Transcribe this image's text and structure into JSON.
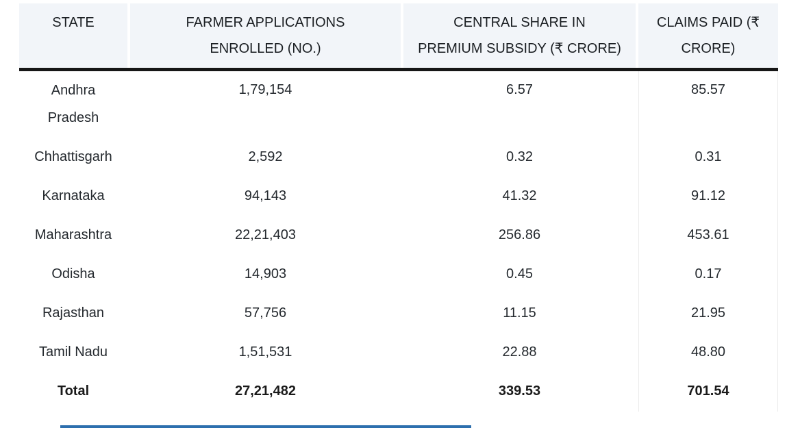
{
  "chart_data": {
    "type": "table",
    "title": "",
    "columns": [
      {
        "label": "STATE",
        "lines": [
          "STATE",
          ""
        ]
      },
      {
        "label": "FARMER APPLICATIONS ENROLLED (NO.)",
        "lines": [
          "FARMER APPLICATIONS",
          "ENROLLED (NO.)"
        ]
      },
      {
        "label": "CENTRAL SHARE IN PREMIUM SUBSIDY (₹ CRORE)",
        "lines": [
          "CENTRAL SHARE IN",
          "PREMIUM SUBSIDY (₹ CRORE)"
        ]
      },
      {
        "label": "CLAIMS PAID (₹ CRORE)",
        "lines": [
          "CLAIMS PAID (₹",
          "CRORE)"
        ]
      }
    ],
    "rows": [
      {
        "state": "Andhra Pradesh",
        "applications": "1,79,154",
        "subsidy": "6.57",
        "claims": "85.57"
      },
      {
        "state": "Chhattisgarh",
        "applications": "2,592",
        "subsidy": "0.32",
        "claims": "0.31"
      },
      {
        "state": "Karnataka",
        "applications": "94,143",
        "subsidy": "41.32",
        "claims": "91.12"
      },
      {
        "state": "Maharashtra",
        "applications": "22,21,403",
        "subsidy": "256.86",
        "claims": "453.61"
      },
      {
        "state": "Odisha",
        "applications": "14,903",
        "subsidy": "0.45",
        "claims": "0.17"
      },
      {
        "state": "Rajasthan",
        "applications": "57,756",
        "subsidy": "11.15",
        "claims": "21.95"
      },
      {
        "state": "Tamil Nadu",
        "applications": "1,51,531",
        "subsidy": "22.88",
        "claims": "48.80"
      },
      {
        "state": "Total",
        "applications": "27,21,482",
        "subsidy": "339.53",
        "claims": "701.54"
      }
    ],
    "totals": {
      "applications": 2721482,
      "subsidy_crore": 339.53,
      "claims_crore": 701.54
    },
    "layout_hints": {
      "grid": "off",
      "numeric_alignment": "center",
      "total_row_bold": true
    }
  },
  "colors": {
    "header_bg": "#f2f5f9",
    "header_border": "#161616",
    "text": "#24292e",
    "accent_bar_blue": "#2d6fae",
    "page_bg": "#ffffff"
  }
}
